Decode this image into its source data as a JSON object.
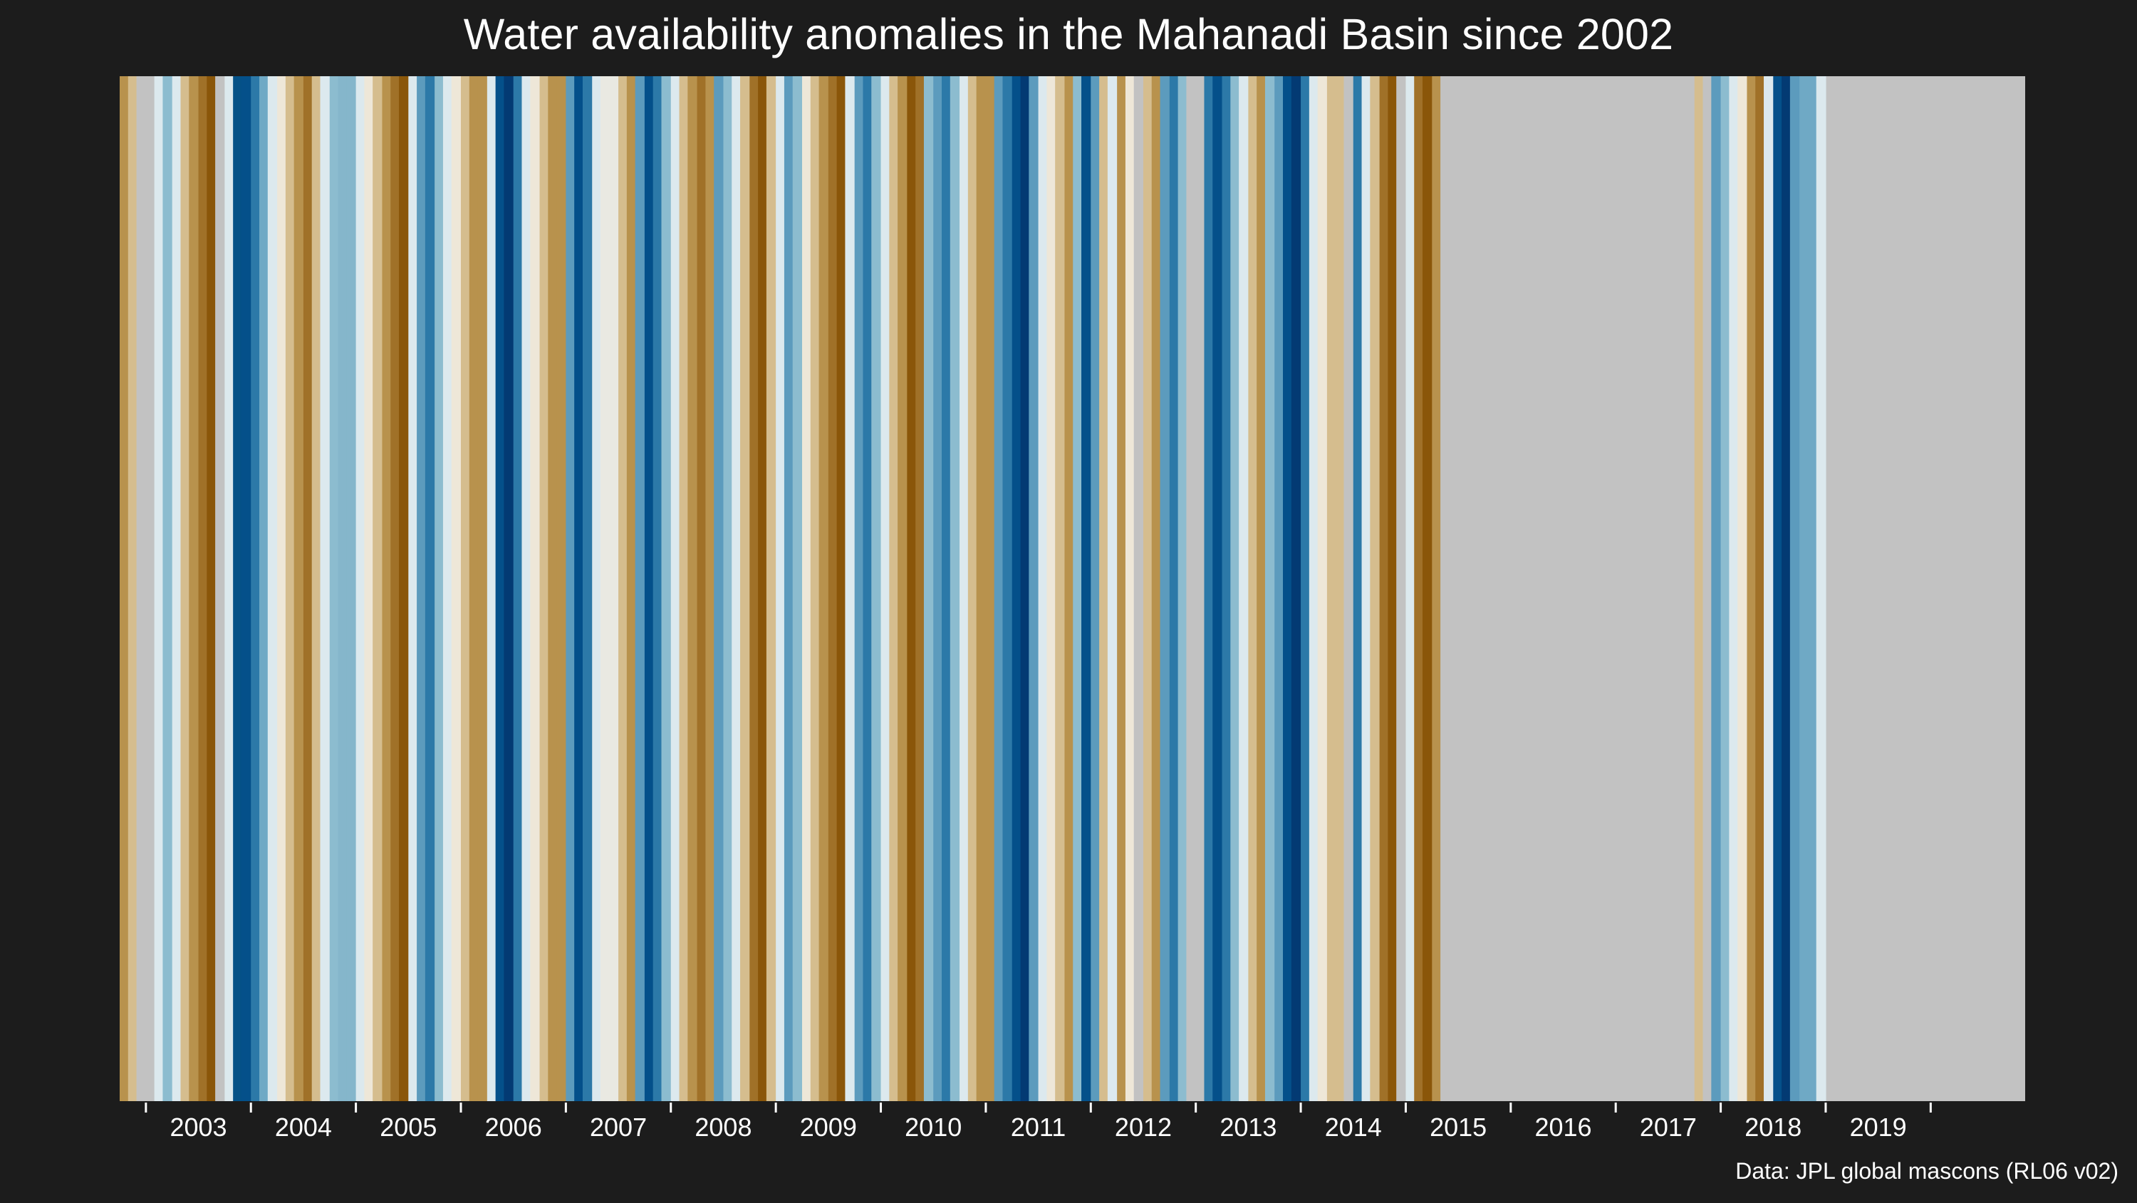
{
  "chart_data": {
    "type": "heatmap",
    "title": "Water availability anomalies in the Mahanadi Basin since 2002",
    "caption": "Data: JPL global mascons (RL06 v02)",
    "xlabel": "",
    "ylabel": "",
    "xlim": [
      2002.25,
      2020.4
    ],
    "grid": false,
    "legend": "none",
    "missing_color": "#c2c2c2",
    "x_ticks": [
      "2003",
      "2004",
      "2005",
      "2006",
      "2007",
      "2008",
      "2009",
      "2010",
      "2011",
      "2012",
      "2013",
      "2014",
      "2015",
      "2016",
      "2017",
      "2018",
      "2019"
    ],
    "x_tick_values": [
      2003,
      2004,
      2005,
      2006,
      2007,
      2008,
      2009,
      2010,
      2011,
      2012,
      2013,
      2014,
      2015,
      2016,
      2017,
      2018,
      2019
    ],
    "stripes": [
      {
        "from": 2002.25,
        "to": 2002.33,
        "color": "#b8924d"
      },
      {
        "from": 2002.33,
        "to": 2002.41,
        "color": "#d5bd8e"
      },
      {
        "from": 2002.41,
        "to": 2002.58,
        "color": "#c2c2c2"
      },
      {
        "from": 2002.58,
        "to": 2002.66,
        "color": "#dce9ee"
      },
      {
        "from": 2002.66,
        "to": 2002.75,
        "color": "#8cbccf"
      },
      {
        "from": 2002.75,
        "to": 2002.83,
        "color": "#dce9ee"
      },
      {
        "from": 2002.83,
        "to": 2002.91,
        "color": "#d5bd8e"
      },
      {
        "from": 2002.91,
        "to": 2003.0,
        "color": "#b8924d"
      },
      {
        "from": 2003.0,
        "to": 2003.08,
        "color": "#a07128"
      },
      {
        "from": 2003.08,
        "to": 2003.16,
        "color": "#8a5609"
      },
      {
        "from": 2003.16,
        "to": 2003.25,
        "color": "#c2c2c2"
      },
      {
        "from": 2003.25,
        "to": 2003.33,
        "color": "#dce9ee"
      },
      {
        "from": 2003.33,
        "to": 2003.41,
        "color": "#045187"
      },
      {
        "from": 2003.41,
        "to": 2003.5,
        "color": "#04508a"
      },
      {
        "from": 2003.5,
        "to": 2003.58,
        "color": "#2c79a8"
      },
      {
        "from": 2003.58,
        "to": 2003.66,
        "color": "#6fa9c5"
      },
      {
        "from": 2003.66,
        "to": 2003.75,
        "color": "#dce9ee"
      },
      {
        "from": 2003.75,
        "to": 2003.83,
        "color": "#eee7d8"
      },
      {
        "from": 2003.83,
        "to": 2003.91,
        "color": "#d5bd8e"
      },
      {
        "from": 2003.91,
        "to": 2004.0,
        "color": "#b8924d"
      },
      {
        "from": 2004.0,
        "to": 2004.08,
        "color": "#a07128"
      },
      {
        "from": 2004.08,
        "to": 2004.16,
        "color": "#d5bd8e"
      },
      {
        "from": 2004.16,
        "to": 2004.25,
        "color": "#dce9ee"
      },
      {
        "from": 2004.25,
        "to": 2004.33,
        "color": "#8cbccf"
      },
      {
        "from": 2004.33,
        "to": 2004.41,
        "color": "#85b6cb"
      },
      {
        "from": 2004.41,
        "to": 2004.5,
        "color": "#85b6cb"
      },
      {
        "from": 2004.5,
        "to": 2004.58,
        "color": "#dce9ee"
      },
      {
        "from": 2004.58,
        "to": 2004.66,
        "color": "#eee7d8"
      },
      {
        "from": 2004.66,
        "to": 2004.75,
        "color": "#d5bd8e"
      },
      {
        "from": 2004.75,
        "to": 2004.83,
        "color": "#b8924d"
      },
      {
        "from": 2004.83,
        "to": 2004.91,
        "color": "#a07128"
      },
      {
        "from": 2004.91,
        "to": 2005.0,
        "color": "#8a5609"
      },
      {
        "from": 2005.0,
        "to": 2005.08,
        "color": "#dce9ee"
      },
      {
        "from": 2005.08,
        "to": 2005.16,
        "color": "#5c9bbd"
      },
      {
        "from": 2005.16,
        "to": 2005.25,
        "color": "#2c79a8"
      },
      {
        "from": 2005.25,
        "to": 2005.33,
        "color": "#8cbccf"
      },
      {
        "from": 2005.33,
        "to": 2005.41,
        "color": "#dce9ee"
      },
      {
        "from": 2005.41,
        "to": 2005.5,
        "color": "#eee7d8"
      },
      {
        "from": 2005.5,
        "to": 2005.58,
        "color": "#d5bd8e"
      },
      {
        "from": 2005.58,
        "to": 2005.66,
        "color": "#b8924d"
      },
      {
        "from": 2005.66,
        "to": 2005.75,
        "color": "#b8924d"
      },
      {
        "from": 2005.75,
        "to": 2005.83,
        "color": "#dce9ee"
      },
      {
        "from": 2005.83,
        "to": 2005.91,
        "color": "#04508a"
      },
      {
        "from": 2005.91,
        "to": 2006.0,
        "color": "#033a73"
      },
      {
        "from": 2006.0,
        "to": 2006.08,
        "color": "#2c79a8"
      },
      {
        "from": 2006.08,
        "to": 2006.16,
        "color": "#dce9ee"
      },
      {
        "from": 2006.16,
        "to": 2006.25,
        "color": "#eee7d8"
      },
      {
        "from": 2006.25,
        "to": 2006.33,
        "color": "#d5bd8e"
      },
      {
        "from": 2006.33,
        "to": 2006.41,
        "color": "#b8924d"
      },
      {
        "from": 2006.41,
        "to": 2006.5,
        "color": "#b8924d"
      },
      {
        "from": 2006.5,
        "to": 2006.58,
        "color": "#5c9bbd"
      },
      {
        "from": 2006.58,
        "to": 2006.66,
        "color": "#04508a"
      },
      {
        "from": 2006.66,
        "to": 2006.75,
        "color": "#2c79a8"
      },
      {
        "from": 2006.75,
        "to": 2006.83,
        "color": "#dce9ee"
      },
      {
        "from": 2006.83,
        "to": 2006.91,
        "color": "#e9e9e2"
      },
      {
        "from": 2006.91,
        "to": 2007.0,
        "color": "#e9e9e2"
      },
      {
        "from": 2007.0,
        "to": 2007.08,
        "color": "#d5bd8e"
      },
      {
        "from": 2007.08,
        "to": 2007.16,
        "color": "#b8924d"
      },
      {
        "from": 2007.16,
        "to": 2007.25,
        "color": "#5c9bbd"
      },
      {
        "from": 2007.25,
        "to": 2007.33,
        "color": "#04508a"
      },
      {
        "from": 2007.33,
        "to": 2007.41,
        "color": "#2c79a8"
      },
      {
        "from": 2007.41,
        "to": 2007.5,
        "color": "#8cbccf"
      },
      {
        "from": 2007.5,
        "to": 2007.58,
        "color": "#dce9ee"
      },
      {
        "from": 2007.58,
        "to": 2007.66,
        "color": "#d5bd8e"
      },
      {
        "from": 2007.66,
        "to": 2007.75,
        "color": "#b8924d"
      },
      {
        "from": 2007.75,
        "to": 2007.83,
        "color": "#a07128"
      },
      {
        "from": 2007.83,
        "to": 2007.91,
        "color": "#b8924d"
      },
      {
        "from": 2007.91,
        "to": 2008.0,
        "color": "#5c9bbd"
      },
      {
        "from": 2008.0,
        "to": 2008.08,
        "color": "#8cbccf"
      },
      {
        "from": 2008.08,
        "to": 2008.16,
        "color": "#dce9ee"
      },
      {
        "from": 2008.16,
        "to": 2008.25,
        "color": "#d5bd8e"
      },
      {
        "from": 2008.25,
        "to": 2008.33,
        "color": "#a07128"
      },
      {
        "from": 2008.33,
        "to": 2008.41,
        "color": "#8a5609"
      },
      {
        "from": 2008.41,
        "to": 2008.5,
        "color": "#d5bd8e"
      },
      {
        "from": 2008.5,
        "to": 2008.58,
        "color": "#dce9ee"
      },
      {
        "from": 2008.58,
        "to": 2008.66,
        "color": "#5c9bbd"
      },
      {
        "from": 2008.66,
        "to": 2008.75,
        "color": "#8cbccf"
      },
      {
        "from": 2008.75,
        "to": 2008.83,
        "color": "#eee7d8"
      },
      {
        "from": 2008.83,
        "to": 2008.91,
        "color": "#d5bd8e"
      },
      {
        "from": 2008.91,
        "to": 2009.0,
        "color": "#b8924d"
      },
      {
        "from": 2009.0,
        "to": 2009.08,
        "color": "#a07128"
      },
      {
        "from": 2009.08,
        "to": 2009.16,
        "color": "#8a5609"
      },
      {
        "from": 2009.16,
        "to": 2009.25,
        "color": "#dce9ee"
      },
      {
        "from": 2009.25,
        "to": 2009.33,
        "color": "#5c9bbd"
      },
      {
        "from": 2009.33,
        "to": 2009.41,
        "color": "#2c79a8"
      },
      {
        "from": 2009.41,
        "to": 2009.5,
        "color": "#8cbccf"
      },
      {
        "from": 2009.5,
        "to": 2009.58,
        "color": "#dce9ee"
      },
      {
        "from": 2009.58,
        "to": 2009.66,
        "color": "#d5bd8e"
      },
      {
        "from": 2009.66,
        "to": 2009.75,
        "color": "#b8924d"
      },
      {
        "from": 2009.75,
        "to": 2009.83,
        "color": "#8a5609"
      },
      {
        "from": 2009.83,
        "to": 2009.91,
        "color": "#a07128"
      },
      {
        "from": 2009.91,
        "to": 2010.0,
        "color": "#8cbccf"
      },
      {
        "from": 2010.0,
        "to": 2010.08,
        "color": "#5c9bbd"
      },
      {
        "from": 2010.08,
        "to": 2010.16,
        "color": "#2c79a8"
      },
      {
        "from": 2010.16,
        "to": 2010.25,
        "color": "#8cbccf"
      },
      {
        "from": 2010.25,
        "to": 2010.33,
        "color": "#dce9ee"
      },
      {
        "from": 2010.33,
        "to": 2010.41,
        "color": "#d5bd8e"
      },
      {
        "from": 2010.41,
        "to": 2010.5,
        "color": "#b8924d"
      },
      {
        "from": 2010.5,
        "to": 2010.58,
        "color": "#b8924d"
      },
      {
        "from": 2010.58,
        "to": 2010.66,
        "color": "#5c9bbd"
      },
      {
        "from": 2010.66,
        "to": 2010.75,
        "color": "#2c79a8"
      },
      {
        "from": 2010.75,
        "to": 2010.83,
        "color": "#04508a"
      },
      {
        "from": 2010.83,
        "to": 2010.91,
        "color": "#033a73"
      },
      {
        "from": 2010.91,
        "to": 2011.0,
        "color": "#5c9bbd"
      },
      {
        "from": 2011.0,
        "to": 2011.08,
        "color": "#dce9ee"
      },
      {
        "from": 2011.08,
        "to": 2011.16,
        "color": "#eee7d8"
      },
      {
        "from": 2011.16,
        "to": 2011.25,
        "color": "#d5bd8e"
      },
      {
        "from": 2011.25,
        "to": 2011.33,
        "color": "#b8924d"
      },
      {
        "from": 2011.33,
        "to": 2011.41,
        "color": "#8cbccf"
      },
      {
        "from": 2011.41,
        "to": 2011.5,
        "color": "#04508a"
      },
      {
        "from": 2011.5,
        "to": 2011.58,
        "color": "#5c9bbd"
      },
      {
        "from": 2011.58,
        "to": 2011.66,
        "color": "#d5bd8e"
      },
      {
        "from": 2011.66,
        "to": 2011.75,
        "color": "#dce9ee"
      },
      {
        "from": 2011.75,
        "to": 2011.83,
        "color": "#b8924d"
      },
      {
        "from": 2011.83,
        "to": 2011.91,
        "color": "#eee7d8"
      },
      {
        "from": 2011.91,
        "to": 2012.0,
        "color": "#c2c2c2"
      },
      {
        "from": 2012.0,
        "to": 2012.08,
        "color": "#d5bd8e"
      },
      {
        "from": 2012.08,
        "to": 2012.16,
        "color": "#b8924d"
      },
      {
        "from": 2012.16,
        "to": 2012.25,
        "color": "#5c9bbd"
      },
      {
        "from": 2012.25,
        "to": 2012.33,
        "color": "#2c79a8"
      },
      {
        "from": 2012.33,
        "to": 2012.41,
        "color": "#8cbccf"
      },
      {
        "from": 2012.41,
        "to": 2012.5,
        "color": "#c2c2c2"
      },
      {
        "from": 2012.5,
        "to": 2012.58,
        "color": "#c2c2c2"
      },
      {
        "from": 2012.58,
        "to": 2012.66,
        "color": "#2c79a8"
      },
      {
        "from": 2012.66,
        "to": 2012.75,
        "color": "#04508a"
      },
      {
        "from": 2012.75,
        "to": 2012.83,
        "color": "#2c79a8"
      },
      {
        "from": 2012.83,
        "to": 2012.91,
        "color": "#8cbccf"
      },
      {
        "from": 2012.91,
        "to": 2013.0,
        "color": "#dce9ee"
      },
      {
        "from": 2013.0,
        "to": 2013.08,
        "color": "#d5bd8e"
      },
      {
        "from": 2013.08,
        "to": 2013.16,
        "color": "#b8924d"
      },
      {
        "from": 2013.16,
        "to": 2013.25,
        "color": "#8cbccf"
      },
      {
        "from": 2013.25,
        "to": 2013.33,
        "color": "#5c9bbd"
      },
      {
        "from": 2013.33,
        "to": 2013.41,
        "color": "#04508a"
      },
      {
        "from": 2013.41,
        "to": 2013.5,
        "color": "#033a73"
      },
      {
        "from": 2013.5,
        "to": 2013.58,
        "color": "#2c79a8"
      },
      {
        "from": 2013.58,
        "to": 2013.66,
        "color": "#dce9ee"
      },
      {
        "from": 2013.66,
        "to": 2013.75,
        "color": "#eee7d8"
      },
      {
        "from": 2013.75,
        "to": 2013.83,
        "color": "#d5bd8e"
      },
      {
        "from": 2013.83,
        "to": 2013.91,
        "color": "#d5bd8e"
      },
      {
        "from": 2013.91,
        "to": 2014.0,
        "color": "#c2c2c2"
      },
      {
        "from": 2014.0,
        "to": 2014.08,
        "color": "#2c79a8"
      },
      {
        "from": 2014.08,
        "to": 2014.16,
        "color": "#dce9ee"
      },
      {
        "from": 2014.16,
        "to": 2014.25,
        "color": "#d5bd8e"
      },
      {
        "from": 2014.25,
        "to": 2014.33,
        "color": "#a07128"
      },
      {
        "from": 2014.33,
        "to": 2014.41,
        "color": "#8a5609"
      },
      {
        "from": 2014.41,
        "to": 2014.5,
        "color": "#c2c2c2"
      },
      {
        "from": 2014.5,
        "to": 2014.58,
        "color": "#dce9ee"
      },
      {
        "from": 2014.58,
        "to": 2014.66,
        "color": "#a07128"
      },
      {
        "from": 2014.66,
        "to": 2014.75,
        "color": "#8a5609"
      },
      {
        "from": 2014.75,
        "to": 2014.83,
        "color": "#b8924d"
      },
      {
        "from": 2014.83,
        "to": 2015.0,
        "color": "#c2c2c2"
      },
      {
        "from": 2015.0,
        "to": 2017.25,
        "color": "#c2c2c2"
      },
      {
        "from": 2017.25,
        "to": 2017.33,
        "color": "#d5bd8e"
      },
      {
        "from": 2017.33,
        "to": 2017.41,
        "color": "#c2c2c2"
      },
      {
        "from": 2017.41,
        "to": 2017.5,
        "color": "#5c9bbd"
      },
      {
        "from": 2017.5,
        "to": 2017.58,
        "color": "#8cbccf"
      },
      {
        "from": 2017.58,
        "to": 2017.66,
        "color": "#dce9ee"
      },
      {
        "from": 2017.66,
        "to": 2017.75,
        "color": "#eee7d8"
      },
      {
        "from": 2017.75,
        "to": 2017.83,
        "color": "#b8924d"
      },
      {
        "from": 2017.83,
        "to": 2017.91,
        "color": "#a07128"
      },
      {
        "from": 2017.91,
        "to": 2018.0,
        "color": "#dce9ee"
      },
      {
        "from": 2018.0,
        "to": 2018.08,
        "color": "#04508a"
      },
      {
        "from": 2018.08,
        "to": 2018.16,
        "color": "#033a73"
      },
      {
        "from": 2018.16,
        "to": 2018.25,
        "color": "#5c9bbd"
      },
      {
        "from": 2018.25,
        "to": 2018.41,
        "color": "#6fa9c5"
      },
      {
        "from": 2018.41,
        "to": 2018.5,
        "color": "#dce9ee"
      }
    ]
  }
}
